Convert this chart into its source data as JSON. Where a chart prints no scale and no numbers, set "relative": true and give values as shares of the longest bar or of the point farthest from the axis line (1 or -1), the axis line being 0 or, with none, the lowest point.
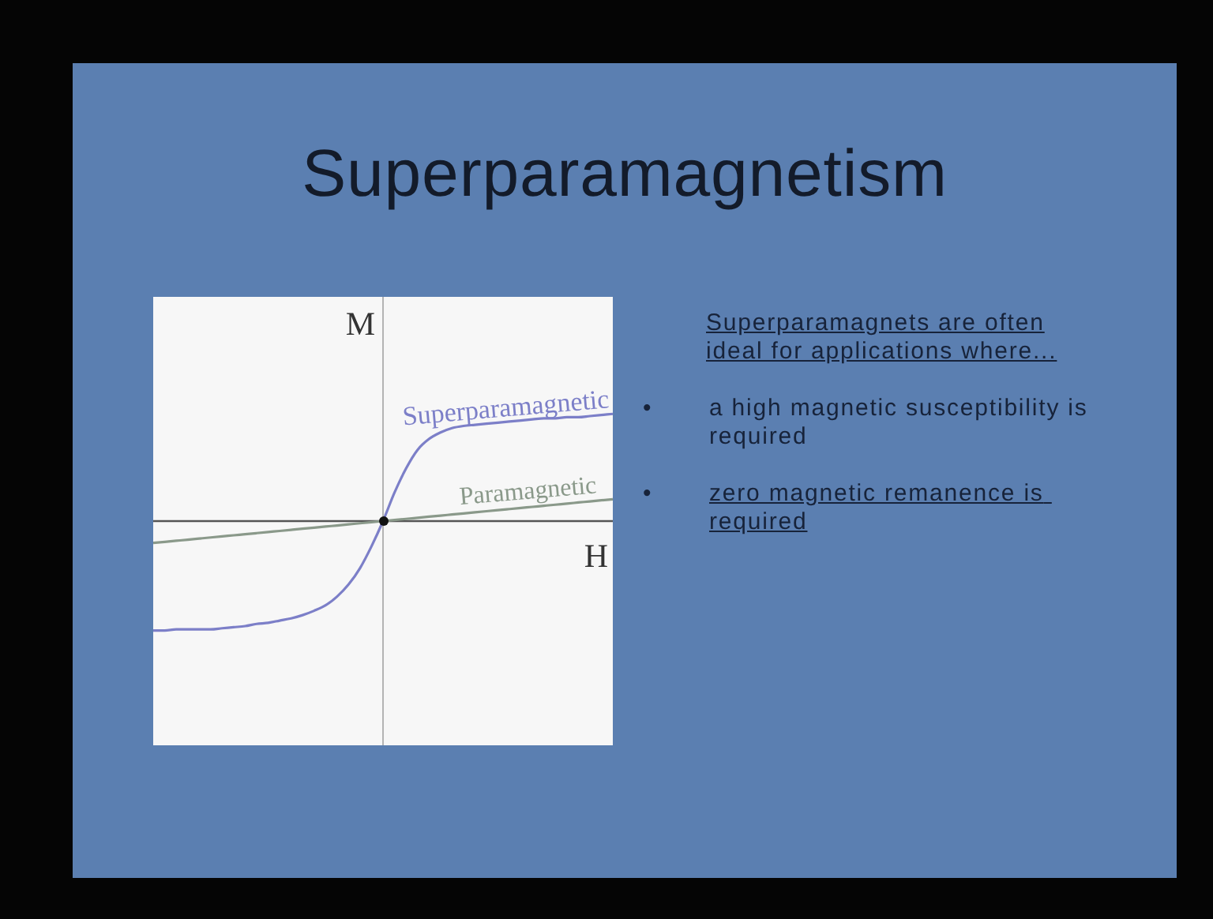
{
  "chart_data": {
    "type": "line",
    "title": "Superparamagnetism",
    "xlabel": "H",
    "ylabel": "M",
    "relative": true,
    "marker": "none",
    "line_style": "solid",
    "legend": false,
    "categories": [
      null,
      null,
      null,
      null,
      null,
      null,
      null,
      null,
      null,
      null,
      null,
      null,
      null,
      null,
      null,
      null,
      null,
      null,
      null,
      null,
      null,
      null,
      null,
      null,
      null,
      null,
      null,
      null,
      null,
      null,
      null,
      null,
      null,
      null,
      null,
      null,
      null,
      null,
      null,
      null,
      null
    ],
    "series": [
      {
        "name": "Superparamagnetic",
        "color": "#7c7fc8",
        "values": [
          -1,
          -1,
          -0.99,
          -0.99,
          -0.99,
          -0.99,
          -0.98,
          -0.97,
          -0.96,
          -0.94,
          -0.93,
          -0.91,
          -0.89,
          -0.86,
          -0.82,
          -0.77,
          -0.69,
          -0.58,
          -0.43,
          -0.23,
          0,
          0.26,
          0.48,
          0.65,
          0.75,
          0.81,
          0.85,
          0.87,
          0.88,
          0.89,
          0.9,
          0.91,
          0.92,
          0.93,
          0.94,
          0.94,
          0.95,
          0.95,
          0.96,
          0.97,
          0.98
        ]
      },
      {
        "name": "Paramagnetic",
        "color": "#8a998a",
        "values": [
          -0.2,
          -0.19,
          -0.18,
          -0.17,
          -0.16,
          -0.15,
          -0.14,
          -0.13,
          -0.12,
          -0.11,
          -0.1,
          -0.09,
          -0.08,
          -0.07,
          -0.06,
          -0.05,
          -0.04,
          -0.03,
          -0.02,
          -0.01,
          0,
          0.01,
          0.02,
          0.03,
          0.04,
          0.05,
          0.06,
          0.07,
          0.08,
          0.09,
          0.1,
          0.11,
          0.12,
          0.13,
          0.14,
          0.15,
          0.16,
          0.17,
          0.18,
          0.19,
          0.2
        ]
      }
    ],
    "annotations": [
      "Superparamagnets are often ideal for applications where...",
      "•\ta high magnetic susceptibility is required",
      "•\tzero magnetic remanence is required"
    ]
  }
}
